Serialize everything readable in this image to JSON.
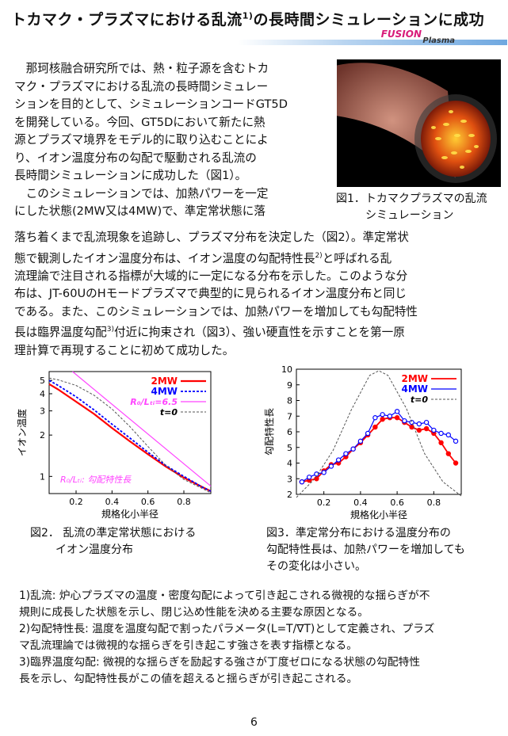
{
  "title": "トカマク・プラズマにおける乱流",
  "title_sup": "1)",
  "title_rest": "の長時間シミュレーションに成功",
  "banner": {
    "fusion": "FUSION",
    "plasma": "Plasma"
  },
  "para1_lines": [
    "　那珂核融合研究所では、熱・粒子源を含むトカ",
    "マク・プラズマにおける乱流の長時間シミュレー",
    "ションを目的として、シミュレーションコードGT5D",
    "を開発している。今回、GT5Dにおいて新たに熱",
    "源とプラズマ境界をモデル的に取り込むことによ",
    "り、イオン温度分布の勾配で駆動される乱流の",
    "長時間シミュレーションに成功した（図1）。",
    "　このシミュレーションでは、加熱パワーを一定",
    "にした状態(2MW又は4MW)で、準定常状態に落"
  ],
  "para2": {
    "l1": "落ち着くまで乱流現象を追跡し、プラズマ分布を決定した（図2）。準定常状",
    "l2a": "態で観測したイオン温度分布は、イオン温度の勾配特性長",
    "l2sup": "2)",
    "l2b": "と呼ばれる乱",
    "l3": "流理論で注目される指標が大域的に一定になる分布を示した。このような分",
    "l4": "布は、JT-60UのHモードプラズマで典型的に見られるイオン温度分布と同じ",
    "l5": "である。また、このシミュレーションでは、加熱パワーを増加しても勾配特性",
    "l6a": "長は臨界温度勾配",
    "l6sup": "3)",
    "l6b": "付近に拘束され（図3）、強い硬直性を示すことを第一原",
    "l7": "理計算で再現することに初めて成功した。"
  },
  "fig1_caption": {
    "l1": "図1．トカマクプラズマの乱流",
    "l2": "シミュレーション"
  },
  "fig2_caption": {
    "l1": "図2．  乱流の準定常状態における",
    "l2": "イオン温度分布"
  },
  "fig3_caption": {
    "l1": "図3．準定常分布における温度分布の",
    "l2": "勾配特性長は、加熱パワーを増加しても",
    "l3": "その変化は小さい。"
  },
  "footnotes": [
    "1)乱流: 炉心プラズマの温度・密度勾配によって引き起こされる微視的な揺らぎが不",
    "規則に成長した状態を示し、閉じ込め性能を決める主要な原因となる。",
    "2)勾配特性長: 温度を温度勾配で割ったパラメータ(L=T/∇T)として定義され、プラズ",
    "マ乱流理論では微視的な揺らぎを引き起こす強さを表す指標となる。",
    "3)臨界温度勾配: 微視的な揺らぎを励起する強さが丁度ゼロになる状態の勾配特性",
    "長を示し、勾配特性長がこの値を超えると揺らぎが引き起こされる。"
  ],
  "page_number": "6",
  "colors": {
    "red": "#ff0000",
    "blue": "#0000ff",
    "magenta": "#ff44ff",
    "gray": "#555555",
    "banner_pink": "#d81b7a"
  },
  "chart_data": [
    {
      "type": "line",
      "xlabel": "規格化小半径",
      "ylabel": "イオン温度",
      "yscale": "log",
      "xlim": [
        0.05,
        0.95
      ],
      "ylim": [
        0.75,
        5.8
      ],
      "xticks": [
        "0.2",
        "0.4",
        "0.6",
        "0.8"
      ],
      "yticks": [
        "1",
        "2",
        "3",
        "4",
        "5"
      ],
      "legend_position": "top-right",
      "annotation": "R₀/Lₜᵢ: 勾配特性長",
      "series": [
        {
          "name": "2MW",
          "x": [
            0.05,
            0.1,
            0.2,
            0.3,
            0.4,
            0.5,
            0.6,
            0.7,
            0.8,
            0.9,
            0.95
          ],
          "y": [
            4.7,
            4.3,
            3.5,
            2.85,
            2.25,
            1.8,
            1.45,
            1.18,
            0.98,
            0.84,
            0.78
          ]
        },
        {
          "name": "4MW",
          "x": [
            0.05,
            0.1,
            0.2,
            0.3,
            0.4,
            0.5,
            0.6,
            0.7,
            0.8,
            0.9,
            0.95
          ],
          "y": [
            5.0,
            4.6,
            3.8,
            3.05,
            2.4,
            1.9,
            1.5,
            1.2,
            1.0,
            0.84,
            0.78
          ]
        },
        {
          "name": "R₀/Lₜᵢ=6.5",
          "x": [
            0.18,
            0.95
          ],
          "y": [
            5.8,
            0.85
          ]
        },
        {
          "name": "t=0",
          "x": [
            0.05,
            0.1,
            0.2,
            0.3,
            0.4,
            0.5,
            0.6,
            0.7,
            0.8,
            0.9,
            0.95
          ],
          "y": [
            5.2,
            5.05,
            4.6,
            3.9,
            3.1,
            2.3,
            1.65,
            1.2,
            0.95,
            0.82,
            0.76
          ]
        }
      ]
    },
    {
      "type": "scatter",
      "xlabel": "規格化小半径",
      "ylabel": "勾配特性長",
      "xlim": [
        0.05,
        0.95
      ],
      "ylim": [
        2,
        10
      ],
      "xticks": [
        "0.2",
        "0.4",
        "0.6",
        "0.8"
      ],
      "yticks": [
        "2",
        "3",
        "4",
        "5",
        "6",
        "7",
        "8",
        "9",
        "10"
      ],
      "legend_position": "top-right",
      "series": [
        {
          "name": "2MW",
          "x": [
            0.08,
            0.12,
            0.16,
            0.2,
            0.24,
            0.28,
            0.32,
            0.36,
            0.4,
            0.44,
            0.48,
            0.52,
            0.56,
            0.6,
            0.64,
            0.68,
            0.72,
            0.76,
            0.8,
            0.84,
            0.88,
            0.92
          ],
          "y": [
            2.8,
            2.9,
            3.0,
            3.5,
            3.9,
            4.0,
            4.4,
            4.9,
            5.3,
            5.8,
            6.3,
            6.8,
            6.9,
            6.9,
            6.6,
            6.3,
            6.1,
            6.2,
            5.9,
            5.3,
            4.6,
            4.0
          ]
        },
        {
          "name": "4MW",
          "x": [
            0.08,
            0.12,
            0.16,
            0.2,
            0.24,
            0.28,
            0.32,
            0.36,
            0.4,
            0.44,
            0.48,
            0.52,
            0.56,
            0.6,
            0.64,
            0.68,
            0.72,
            0.76,
            0.8,
            0.84,
            0.88,
            0.92
          ],
          "y": [
            2.8,
            3.1,
            3.3,
            3.4,
            3.8,
            4.2,
            4.6,
            4.9,
            5.4,
            5.9,
            6.9,
            7.1,
            7.0,
            7.3,
            6.7,
            6.6,
            6.5,
            6.6,
            6.1,
            5.9,
            5.8,
            5.4
          ]
        },
        {
          "name": "t=0",
          "x": [
            0.05,
            0.15,
            0.25,
            0.35,
            0.45,
            0.5,
            0.55,
            0.65,
            0.75,
            0.85,
            0.95
          ],
          "y": [
            1.8,
            3.0,
            4.8,
            7.4,
            9.6,
            9.9,
            9.6,
            7.5,
            4.6,
            2.8,
            1.9
          ]
        }
      ]
    }
  ]
}
